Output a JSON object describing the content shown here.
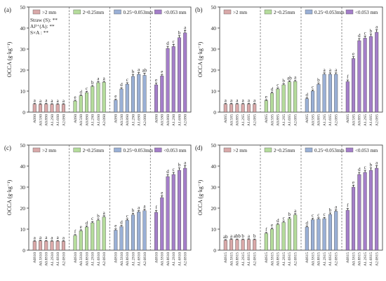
{
  "figure": {
    "colors": {
      "c0": "#d9a9a9",
      "c1": "#b5dc9c",
      "c2": "#9ab0d6",
      "c3": "#a47ec9"
    },
    "ylim": [
      0,
      50
    ],
    "yticks": [
      0,
      10,
      20,
      30,
      40,
      50
    ]
  },
  "chart_data": [
    {
      "type": "bar",
      "panel_label": "(a)",
      "ylabel": "OCCA (g·kg⁻¹)",
      "ylim": [
        0,
        50
      ],
      "legend": [
        ">2 mm",
        "2~0.25mm",
        "0.25~0.053mm",
        "<0.053 mm"
      ],
      "annotations": [
        "Straw (S): **",
        "Al³⁺(A): **",
        "S×A : **"
      ],
      "categories": [
        "A0S0",
        "A0.5S0",
        "A0.8S0",
        "A1.2S0",
        "A1.6S0",
        "A2.0S0"
      ],
      "tick_labels": [
        [
          "A0S0",
          "A0.5S0",
          "A0.8S0",
          "A1.2S0",
          "A1.6S0",
          "A2.0S0"
        ],
        [
          "A0S0",
          "A0.5S0",
          "A0.8S0",
          "A1.2S0",
          "A1.6S0",
          "A2.0S0"
        ],
        [
          "A0S0",
          "A0.5S0",
          "A0.8S0",
          "A1.2S0",
          "A1.6S0",
          "A2.0S0"
        ],
        [
          "A0S0",
          "A0.5S0",
          "A0.8S0",
          "A1.2S0",
          "A1.6S0",
          "A2.0S0"
        ]
      ],
      "series": [
        {
          "name": ">2 mm",
          "values": [
            3.8,
            3.7,
            3.8,
            3.7,
            3.7,
            3.7
          ],
          "errors": [
            0.3,
            0.3,
            0.3,
            0.3,
            0.3,
            0.3
          ],
          "letters": [
            "a",
            "a",
            "a",
            "a",
            "a",
            "a"
          ]
        },
        {
          "name": "2~0.25mm",
          "values": [
            5.3,
            7.8,
            9.3,
            12.2,
            14.0,
            14.2
          ],
          "errors": [
            0.4,
            0.4,
            0.5,
            0.5,
            0.5,
            0.5
          ],
          "letters": [
            "e",
            "d",
            "c",
            "b",
            "a",
            "a"
          ]
        },
        {
          "name": "0.25~0.053mm",
          "values": [
            5.7,
            11.0,
            13.3,
            17.0,
            18.0,
            17.5
          ],
          "errors": [
            0.4,
            0.6,
            0.7,
            0.8,
            0.8,
            1.0
          ],
          "letters": [
            "e",
            "d",
            "c",
            "b",
            "a",
            "ab"
          ]
        },
        {
          "name": "<0.053 mm",
          "values": [
            13.0,
            17.2,
            30.3,
            31.2,
            35.4,
            37.7
          ],
          "errors": [
            0.8,
            0.6,
            1.0,
            1.0,
            1.0,
            1.2
          ],
          "letters": [
            "e",
            "e",
            "d",
            "c",
            "b",
            "a"
          ]
        }
      ]
    },
    {
      "type": "bar",
      "panel_label": "(b)",
      "ylabel": "OCCA (g·kg⁻¹)",
      "ylim": [
        0,
        50
      ],
      "legend": [
        ">2 mm",
        "2~0.25mm",
        "0.25~0.053mm",
        "<0.053 mm"
      ],
      "annotations": [],
      "categories": [
        "A0S5",
        "A0.5S5",
        "A0.8S5",
        "A1.2S5",
        "A1.6S5",
        "A2.0S5"
      ],
      "tick_labels": [
        [
          "A0S5",
          "A0.5S5",
          "A0.8S5",
          "A1.2S5",
          "A1.6S5",
          "A2.0S5"
        ],
        [
          "A0S5",
          "A0.5S5",
          "A0.8S5",
          "A1.2S5",
          "A1.6S5",
          "A2.0S5"
        ],
        [
          "A0S5",
          "A0.5S5",
          "A0.8S5",
          "A1.2S5",
          "A1.6S5",
          "A2.0S5"
        ],
        [
          "A0S5",
          "A0.5S5",
          "A0.8S5",
          "A1.2S5",
          "A1.6S5",
          "A2.0S5"
        ]
      ],
      "series": [
        {
          "name": ">2 mm",
          "values": [
            3.8,
            3.8,
            3.8,
            3.8,
            3.8,
            3.8
          ],
          "errors": [
            0.3,
            0.3,
            0.3,
            0.3,
            0.3,
            0.3
          ],
          "letters": [
            "a",
            "a",
            "a",
            "a",
            "a",
            "a"
          ]
        },
        {
          "name": "2~0.25mm",
          "values": [
            5.5,
            9.0,
            11.0,
            13.0,
            14.4,
            14.6
          ],
          "errors": [
            0.4,
            0.5,
            0.5,
            0.5,
            0.5,
            0.5
          ],
          "letters": [
            "e",
            "d",
            "c",
            "b",
            "ab",
            "a"
          ]
        },
        {
          "name": "0.25~0.053mm",
          "values": [
            6.4,
            10.0,
            13.2,
            18.0,
            18.0,
            18.0
          ],
          "errors": [
            0.4,
            0.5,
            0.6,
            0.7,
            0.7,
            0.7
          ],
          "letters": [
            "d",
            "c",
            "b",
            "a",
            "a",
            "a"
          ]
        },
        {
          "name": "<0.053 mm",
          "values": [
            14.5,
            25.5,
            34.0,
            35.2,
            36.0,
            38.0
          ],
          "errors": [
            0.8,
            0.9,
            1.0,
            1.0,
            1.1,
            1.2
          ],
          "letters": [
            "f",
            "e",
            "d",
            "c",
            "b",
            "a"
          ]
        }
      ]
    },
    {
      "type": "bar",
      "panel_label": "(c)",
      "ylabel": "OCCA (g·kg⁻¹)",
      "ylim": [
        0,
        50
      ],
      "legend": [
        ">2 mm",
        "2~0.25mm",
        "0.25~0.053mm",
        "<0.053 mm"
      ],
      "annotations": [],
      "categories": [
        "A0S10",
        "A0.5S10",
        "A0.8S10",
        "A1.2S10",
        "A1.6S10",
        "A2.0S10"
      ],
      "tick_labels": [
        [
          "A0S10",
          "A0.5S10",
          "A0.8S10",
          "A1.2S10",
          "A1.6S10",
          "A2.0S10"
        ],
        [
          "A0S10",
          "A0.5S10",
          "A0.8S10",
          "A1.2S10",
          "A1.6S10",
          "A2.0S10"
        ],
        [
          "A0S10",
          "A0.5S10",
          "A0.8S10",
          "A1.2S10",
          "A1.6S10",
          "A2.0S10"
        ],
        [
          "A0S10",
          "A0.5S10",
          "A0.8S10",
          "A1.2S10",
          "A1.6S10",
          "A2.0S10"
        ]
      ],
      "series": [
        {
          "name": ">2 mm",
          "values": [
            4.2,
            4.4,
            4.3,
            4.2,
            4.3,
            4.2
          ],
          "errors": [
            0.3,
            0.3,
            0.3,
            0.3,
            0.3,
            0.3
          ],
          "letters": [
            "a",
            "a",
            "a",
            "a",
            "a",
            "a"
          ]
        },
        {
          "name": "2~0.25mm",
          "values": [
            7.0,
            9.2,
            11.0,
            13.0,
            14.2,
            15.8
          ],
          "errors": [
            0.4,
            0.5,
            0.5,
            0.6,
            0.6,
            0.6
          ],
          "letters": [
            "f",
            "e",
            "d",
            "c",
            "b",
            "a"
          ]
        },
        {
          "name": "0.25~0.053mm",
          "values": [
            9.5,
            11.2,
            14.2,
            16.8,
            18.2,
            18.8
          ],
          "errors": [
            0.6,
            0.6,
            0.7,
            0.7,
            0.6,
            0.7
          ],
          "letters": [
            "e",
            "d",
            "c",
            "b",
            "a",
            "a"
          ]
        },
        {
          "name": "<0.053 mm",
          "values": [
            18.0,
            25.0,
            35.0,
            36.0,
            38.0,
            39.0
          ],
          "errors": [
            0.8,
            0.9,
            1.0,
            1.0,
            1.1,
            1.2
          ],
          "letters": [
            "f",
            "e",
            "d",
            "c",
            "b",
            "a"
          ]
        }
      ]
    },
    {
      "type": "bar",
      "panel_label": "(d)",
      "ylabel": "OCCA (g·kg⁻¹)",
      "ylim": [
        0,
        50
      ],
      "legend": [
        ">2 mm",
        "2~0.25mm",
        "0.25~0.053mm",
        "<0.053 mm"
      ],
      "annotations": [],
      "categories": [
        "A0S15",
        "A0.5S15",
        "A0.8S15",
        "A1.2S15",
        "A1.6S15",
        "A2.0S15"
      ],
      "tick_labels": [
        [
          "A0S15",
          "A0.5S15",
          "A0.8S15",
          "A1.2S15",
          "A1.6S15",
          "A2.0S15"
        ],
        [
          "A0S15",
          "A0.5S15",
          "A0.8S15",
          "A1.2S15",
          "A1.6S15",
          "A2.0S15"
        ],
        [
          "A0S15",
          "A0.5S15",
          "A0.8S15",
          "A1.2S15",
          "A1.6S15",
          "A2.0S15"
        ],
        [
          "A0S15",
          "A0.5S15",
          "A0.8S15",
          "A1.2S15",
          "A1.6S15",
          "A2.0S15"
        ]
      ],
      "series": [
        {
          "name": ">2 mm",
          "values": [
            4.7,
            5.1,
            5.0,
            5.0,
            5.1,
            5.0
          ],
          "errors": [
            0.3,
            0.3,
            0.3,
            0.3,
            0.3,
            0.3
          ],
          "letters": [
            "ab",
            "a",
            "abb",
            "b",
            "a",
            "b"
          ]
        },
        {
          "name": "2~0.25mm",
          "values": [
            8.0,
            10.0,
            12.2,
            13.2,
            15.0,
            16.8
          ],
          "errors": [
            0.4,
            0.5,
            0.5,
            0.6,
            0.6,
            0.6
          ],
          "letters": [
            "f",
            "e",
            "d",
            "c",
            "b",
            "a"
          ]
        },
        {
          "name": "0.25~0.053mm",
          "values": [
            11.0,
            14.5,
            14.8,
            15.0,
            17.0,
            18.5
          ],
          "errors": [
            0.5,
            0.6,
            0.6,
            0.6,
            0.7,
            0.7
          ],
          "letters": [
            "d",
            "c",
            "c",
            "c",
            "b",
            "a"
          ]
        },
        {
          "name": "<0.053 mm",
          "values": [
            19.0,
            30.0,
            36.0,
            37.0,
            38.0,
            39.0
          ],
          "errors": [
            0.8,
            0.9,
            1.0,
            1.0,
            1.1,
            1.2
          ],
          "letters": [
            "f",
            "e",
            "d",
            "c",
            "b",
            "a"
          ]
        }
      ]
    }
  ]
}
